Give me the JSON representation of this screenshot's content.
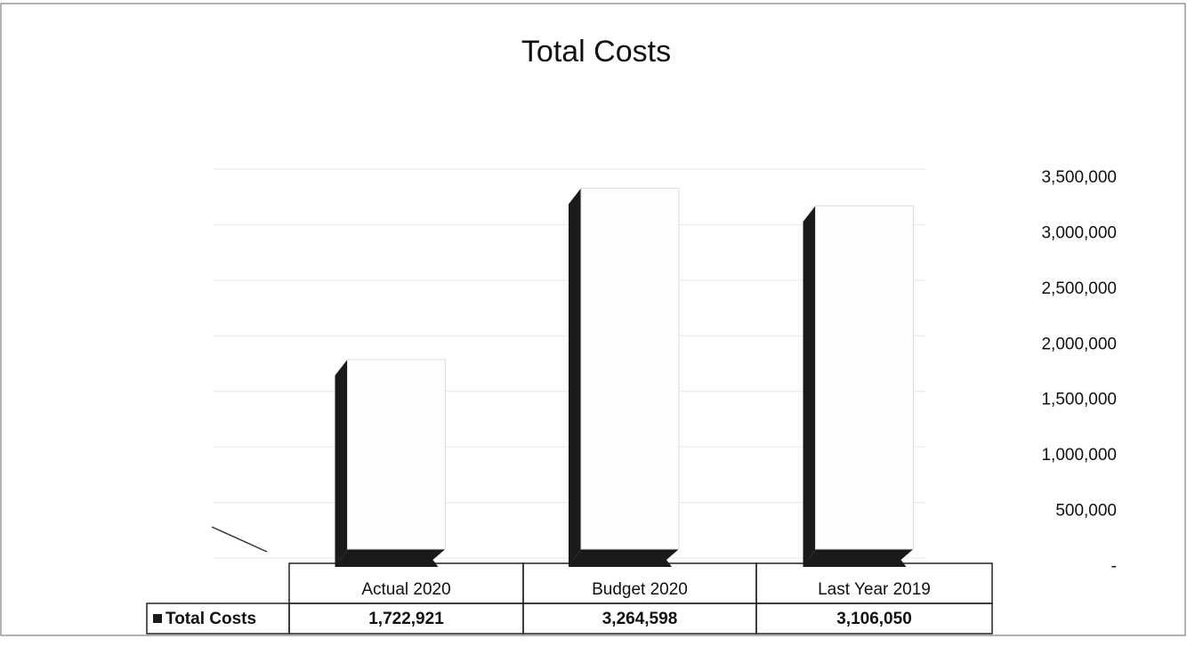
{
  "chart_data": {
    "type": "bar",
    "title": "Total Costs",
    "categories": [
      "Actual 2020",
      "Budget 2020",
      "Last Year 2019"
    ],
    "series": [
      {
        "name": "Total Costs",
        "color": "#1a1a1a",
        "values": [
          1722921,
          3264598,
          3106050
        ],
        "value_labels": [
          "1,722,921",
          "3,264,598",
          "3,106,050"
        ]
      }
    ],
    "ylim": [
      0,
      3500000
    ],
    "yticks": [
      {
        "value": 0,
        "label": "-"
      },
      {
        "value": 500000,
        "label": "500,000"
      },
      {
        "value": 1000000,
        "label": "1,000,000"
      },
      {
        "value": 1500000,
        "label": "1,500,000"
      },
      {
        "value": 2000000,
        "label": "2,000,000"
      },
      {
        "value": 2500000,
        "label": "2,500,000"
      },
      {
        "value": 3000000,
        "label": "3,000,000"
      },
      {
        "value": 3500000,
        "label": "3,500,000"
      }
    ],
    "grid": true
  }
}
